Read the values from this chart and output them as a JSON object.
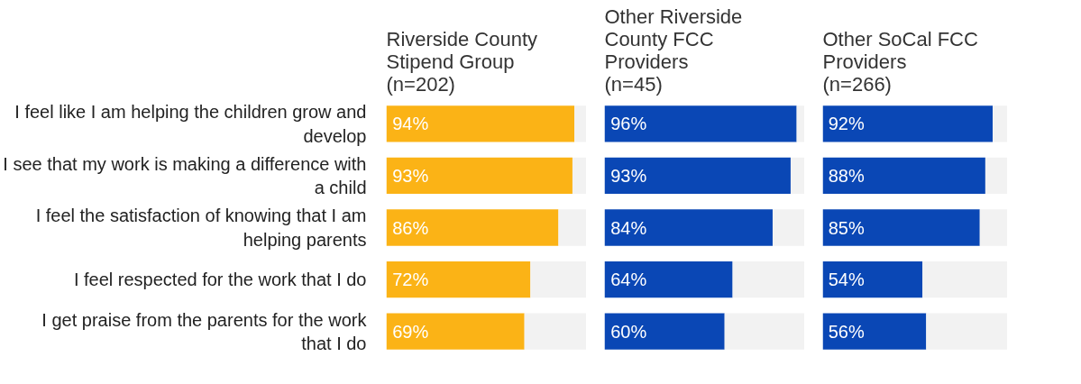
{
  "chart_data": [
    {
      "type": "bar",
      "orientation": "horizontal",
      "stacked": true,
      "title": "Riverside County Stipend Group",
      "subtitle": "(n=202)",
      "categories": [
        "I feel like I am helping the children grow and develop",
        "I see that my work is making a difference with a child",
        "I feel the satisfaction of knowing that I am helping parents",
        "I feel respected for the work that I do",
        "I get praise from the parents for the work that I do"
      ],
      "tick_labels": "y",
      "series": [
        {
          "color": "#fbb316",
          "values": [
            94,
            93,
            86,
            72,
            69
          ],
          "value_labels": [
            "94%",
            "93%",
            "86%",
            "72%",
            "69%"
          ]
        },
        {
          "color": "#f2f2f2",
          "values": [
            6,
            7,
            14,
            28,
            31
          ]
        }
      ]
    },
    {
      "type": "bar",
      "orientation": "horizontal",
      "stacked": true,
      "title": "Other Riverside County FCC Providers",
      "subtitle": "(n=45)",
      "categories": [
        "I feel like I am helping the children grow and develop",
        "I see that my work is making a difference with a child",
        "I feel the satisfaction of knowing that I am helping parents",
        "I feel respected for the work that I do",
        "I get praise from the parents for the work that I do"
      ],
      "tick_labels": false,
      "series": [
        {
          "color": "#0a47b5",
          "values": [
            96,
            93,
            84,
            64,
            60
          ],
          "value_labels": [
            "96%",
            "93%",
            "84%",
            "64%",
            "60%"
          ]
        },
        {
          "color": "#f2f2f2",
          "values": [
            4,
            7,
            16,
            36,
            40
          ]
        }
      ]
    },
    {
      "type": "bar",
      "orientation": "horizontal",
      "stacked": true,
      "title": "Other SoCal FCC Providers",
      "subtitle": "(n=266)",
      "categories": [
        "I feel like I am helping the children grow and develop",
        "I see that my work is making a difference with a child",
        "I feel the satisfaction of knowing that I am helping parents",
        "I feel respected for the work that I do",
        "I get praise from the parents for the work that I do"
      ],
      "tick_labels": false,
      "series": [
        {
          "color": "#0a47b5",
          "values": [
            92,
            88,
            85,
            54,
            56
          ],
          "value_labels": [
            "92%",
            "88%",
            "85%",
            "54%",
            "56%"
          ]
        },
        {
          "color": "#f2f2f2",
          "values": [
            8,
            12,
            15,
            46,
            44
          ]
        }
      ]
    }
  ]
}
